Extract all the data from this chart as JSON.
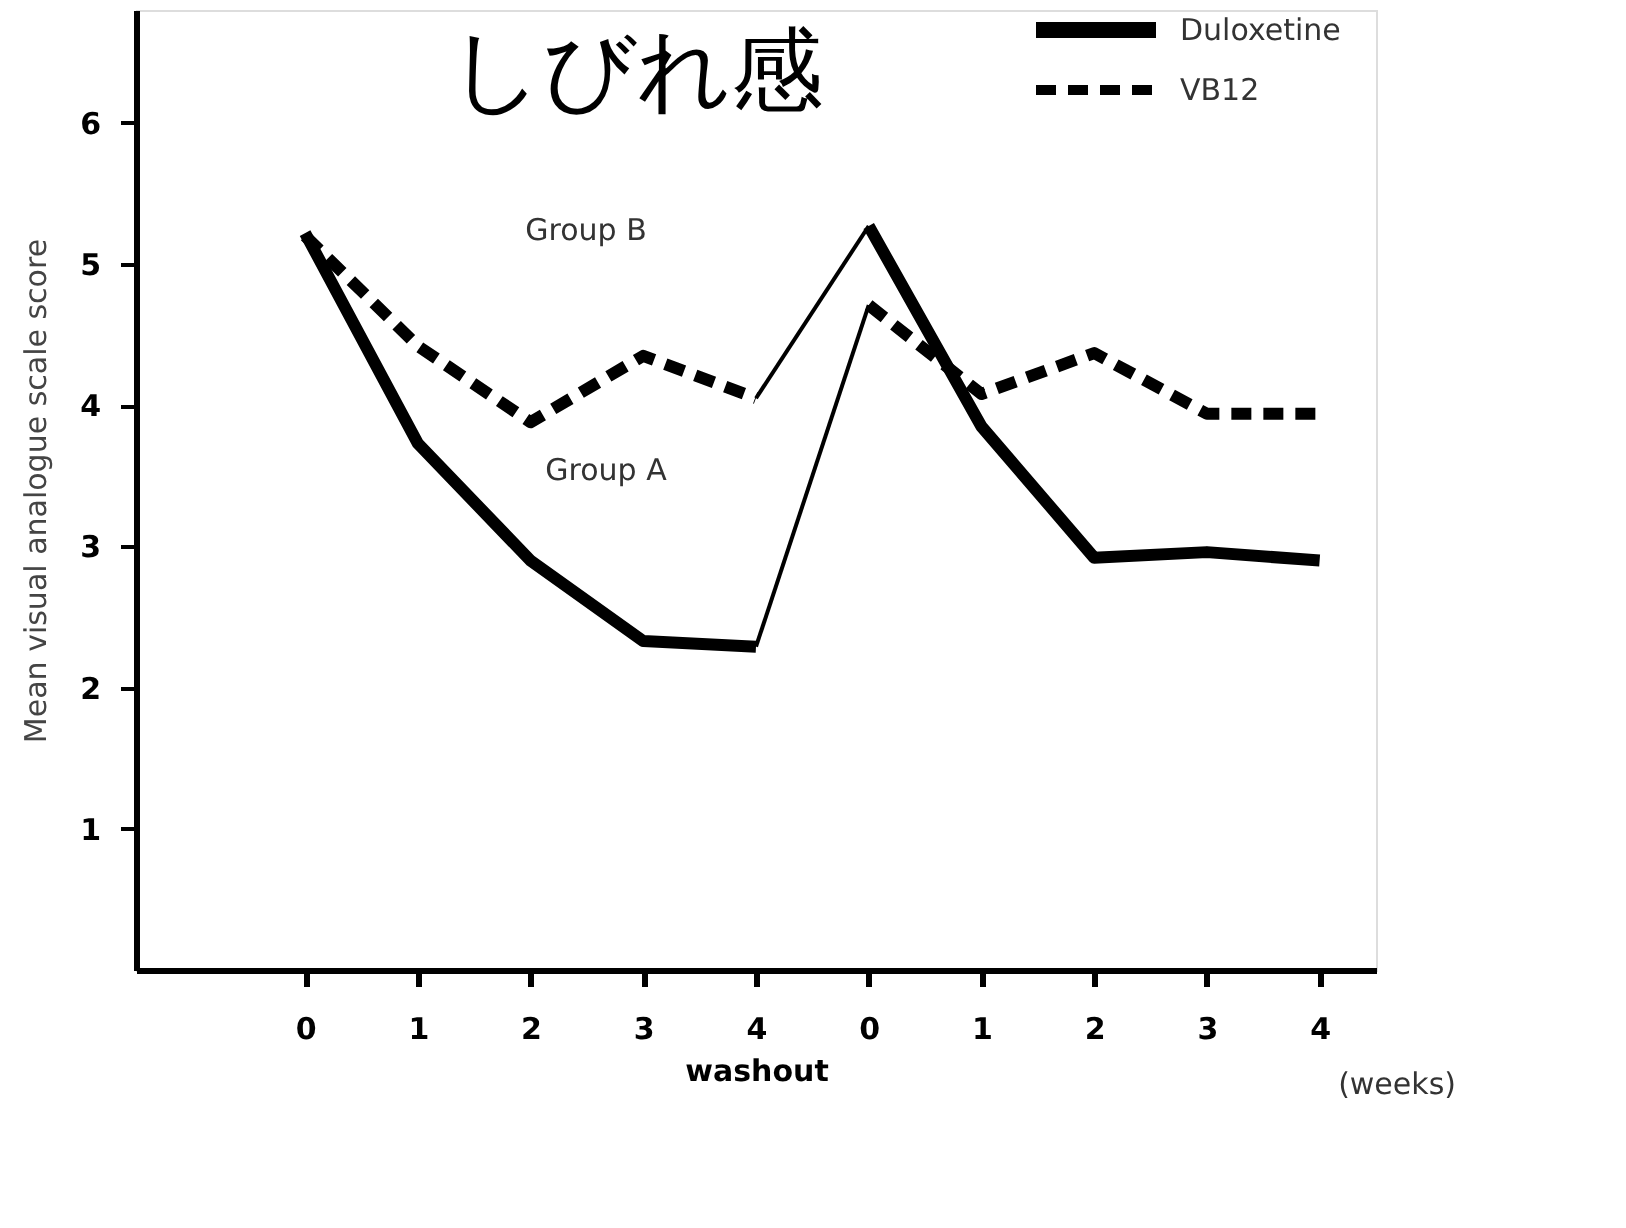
{
  "chart_data": {
    "type": "line",
    "title": "しびれ感",
    "xlabel": "washout",
    "ylabel": "Mean visual  analogue scale score",
    "categories": [
      "0",
      "1",
      "2",
      "3",
      "4",
      "0",
      "1",
      "2",
      "3",
      "4"
    ],
    "series": [
      {
        "name": "Duloxetine",
        "color": "#000000",
        "line_style": "solid",
        "values": [
          5.22,
          3.73,
          2.9,
          2.33,
          2.29,
          null,
          null,
          null,
          null,
          null
        ]
      },
      {
        "color": "#000000",
        "line_style": "solid",
        "values": [
          null,
          null,
          null,
          null,
          2.29,
          4.71,
          null,
          null,
          null,
          null
        ]
      },
      {
        "name": "VB12",
        "color": "#000000",
        "line_style": "dashed",
        "values": [
          null,
          null,
          null,
          null,
          null,
          4.71,
          4.08,
          4.37,
          3.94,
          3.94
        ]
      },
      {
        "color": "#000000",
        "line_style": "dashed",
        "values": [
          5.2,
          4.42,
          3.88,
          4.35,
          4.05,
          null,
          null,
          null,
          null,
          null
        ]
      },
      {
        "color": "#000000",
        "line_style": "solid",
        "values": [
          null,
          null,
          null,
          null,
          4.05,
          5.27,
          null,
          null,
          null,
          null
        ]
      },
      {
        "color": "#000000",
        "line_style": "solid",
        "values": [
          null,
          null,
          null,
          null,
          null,
          5.27,
          3.85,
          2.92,
          2.96,
          2.9
        ]
      }
    ],
    "ylim": [
      0,
      6.8
    ],
    "yticks": [
      1,
      2,
      3,
      4,
      5,
      6
    ],
    "grid": false,
    "legend": "top right",
    "annotations": [
      "Group B",
      "Group A",
      "(weeks)"
    ]
  }
}
